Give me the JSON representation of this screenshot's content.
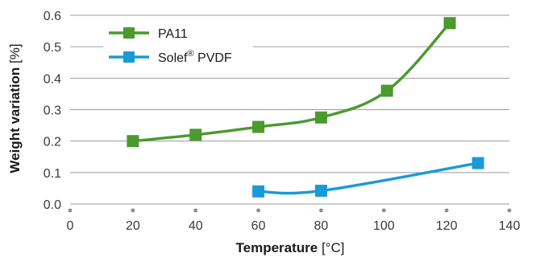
{
  "chart_data": {
    "type": "line",
    "xlabel": {
      "bold": "Temperature",
      "unit": " [°C]"
    },
    "ylabel": {
      "bold": "Weight variation",
      "unit": " [%]"
    },
    "xlim": [
      0,
      140
    ],
    "ylim": [
      0,
      0.6
    ],
    "x_ticks": [
      "0",
      "20",
      "40",
      "60",
      "80",
      "100",
      "120",
      "140"
    ],
    "y_ticks": [
      "0.0",
      "0.1",
      "0.2",
      "0.3",
      "0.4",
      "0.5",
      "0.6"
    ],
    "grid": "horizontal",
    "legend": "top-left",
    "series": [
      {
        "name": "PA11",
        "color": "#4a9a2e",
        "marker": "square",
        "x": [
          20,
          40,
          60,
          80,
          101,
          121
        ],
        "y": [
          0.2,
          0.22,
          0.245,
          0.275,
          0.36,
          0.575
        ]
      },
      {
        "name": "Solef",
        "name_superscript": "®",
        "name_suffix": " PVDF",
        "color": "#1a9ad6",
        "marker": "square",
        "x": [
          60,
          80,
          130
        ],
        "y": [
          0.04,
          0.042,
          0.13
        ]
      }
    ]
  }
}
